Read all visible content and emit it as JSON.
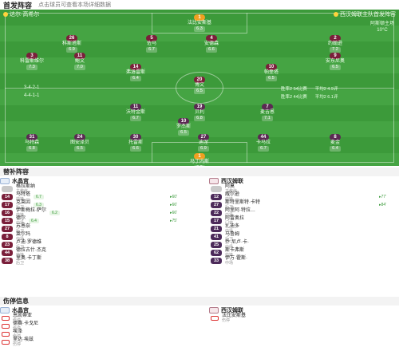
{
  "header": {
    "title": "首发阵容",
    "subtitle": "点击球员可查看本场详细数据"
  },
  "pitch": {
    "home_tag": "达尔·高希尔",
    "away_tag": "西汉姆联主队首发阵容",
    "weather": {
      "line1": "阿斯顿主场",
      "line2": "10°C"
    },
    "formations": {
      "home": {
        "name": "3-4-2-1",
        "rating": "主队评分"
      },
      "away": {
        "name": "4-4-1-1",
        "rating": "客队评分"
      }
    },
    "info_home": [
      "胜率2 54比赛",
      "平均2 4.9评"
    ],
    "info_away": [
      "胜率2 44比赛",
      "平均2 6.1评"
    ],
    "home_players": [
      {
        "num": "1",
        "name": "法比安斯基",
        "rating": "6.3",
        "gk": true
      },
      {
        "num": "26",
        "name": "科斯塔斯",
        "rating": "6.9"
      },
      {
        "num": "5",
        "name": "佐马",
        "rating": "6.7"
      },
      {
        "num": "4",
        "name": "安德森",
        "rating": "6.6"
      },
      {
        "num": "2",
        "name": "约翰逊",
        "rating": "7.2"
      },
      {
        "num": "3",
        "name": "科雷斯维尔",
        "rating": "7.3"
      },
      {
        "num": "11",
        "name": "鲍文",
        "rating": "7.0"
      },
      {
        "num": "14",
        "name": "弗洛雷斯",
        "rating": "6.4"
      },
      {
        "num": "10",
        "name": "帕奎塔",
        "rating": "6.5"
      },
      {
        "num": "9",
        "name": "安东尼奥",
        "rating": "6.5"
      },
      {
        "num": "20",
        "name": "博文",
        "rating": "6.5"
      }
    ],
    "away_players": [
      {
        "num": "1",
        "name": "马丁内斯",
        "rating": "6.9",
        "gk": true
      },
      {
        "num": "31",
        "name": "马特森",
        "rating": "6.8"
      },
      {
        "num": "24",
        "name": "图安泽贝",
        "rating": "6.5"
      },
      {
        "num": "30",
        "name": "托雷斯",
        "rating": "6.6"
      },
      {
        "num": "27",
        "name": "迪涅",
        "rating": "6.9"
      },
      {
        "num": "44",
        "name": "卡马拉",
        "rating": "6.7"
      },
      {
        "num": "8",
        "name": "麦金",
        "rating": "6.4"
      },
      {
        "num": "19",
        "name": "贝利",
        "rating": "6.8"
      },
      {
        "num": "10",
        "name": "罗杰斯",
        "rating": "6.5"
      },
      {
        "num": "11",
        "name": "沃特金斯",
        "rating": "6.7"
      },
      {
        "num": "7",
        "name": "麦吉恩",
        "rating": "7.1"
      }
    ]
  },
  "subs": {
    "title": "替补阵容",
    "home_team": "水晶宫",
    "away_team": "西汉姆联",
    "home": [
      {
        "num": "",
        "name": "格拉斯纳",
        "pos": "主教练"
      },
      {
        "num": "14",
        "name": "马特塔",
        "pos": "前锋",
        "badge": "6.7",
        "min": "▸60'"
      },
      {
        "num": "17",
        "name": "克莱因",
        "pos": "后卫",
        "badge": "6.3",
        "min": "▸66'"
      },
      {
        "num": "16",
        "name": "伊斯梅拉·萨尔",
        "pos": "前锋",
        "badge": "6.2",
        "min": "▸66'"
      },
      {
        "num": "15",
        "name": "德尔",
        "pos": "中场",
        "badge": "6.4",
        "min": "▸75'"
      },
      {
        "num": "27",
        "name": "苏恩奈",
        "pos": "后卫"
      },
      {
        "num": "8",
        "name": "莱尔玛",
        "pos": "中场"
      },
      {
        "num": "23",
        "name": "卢迪·罗德维",
        "pos": "后卫"
      },
      {
        "num": "44",
        "name": "德拉古什·杰克",
        "pos": "前锋"
      },
      {
        "num": "38",
        "name": "里奥·卡丁斯",
        "pos": "后卫"
      }
    ],
    "away": [
      {
        "num": "",
        "name": "阿莫",
        "pos": "主教练"
      },
      {
        "num": "12",
        "name": "威尔逊",
        "pos": "前锋",
        "badge": "",
        "min": "▸77'"
      },
      {
        "num": "27",
        "name": "斯特里斯特·卡特",
        "pos": "后卫",
        "min": "▸84'"
      },
      {
        "num": "22",
        "name": "阿里阿·特拉…",
        "pos": "中场"
      },
      {
        "num": "17",
        "name": "阿雷奥拉",
        "pos": "门将"
      },
      {
        "num": "21",
        "name": "扎迪多",
        "pos": "中场"
      },
      {
        "num": "41",
        "name": "马鲁姆",
        "pos": "后卫"
      },
      {
        "num": "25",
        "name": "乔·尼卢·卡·",
        "pos": "中场"
      },
      {
        "num": "62",
        "name": "斯卡弗斯",
        "pos": "前锋"
      },
      {
        "num": "33",
        "name": "伊万·霍斯·",
        "pos": "中场"
      }
    ]
  },
  "injuries": {
    "title": "伤停信息",
    "home_team": "水晶宫",
    "away_team": "西汉姆联",
    "home": [
      {
        "name": "恩凯蒂亚",
        "status": "伤停"
      },
      {
        "name": "德赛·卡戈尼",
        "status": "伤停"
      },
      {
        "name": "埃泽",
        "status": "伤停"
      },
      {
        "name": "里达·埃兹",
        "status": "伤停"
      }
    ],
    "away": [
      {
        "name": "法比安斯基",
        "status": "伤停"
      }
    ]
  }
}
